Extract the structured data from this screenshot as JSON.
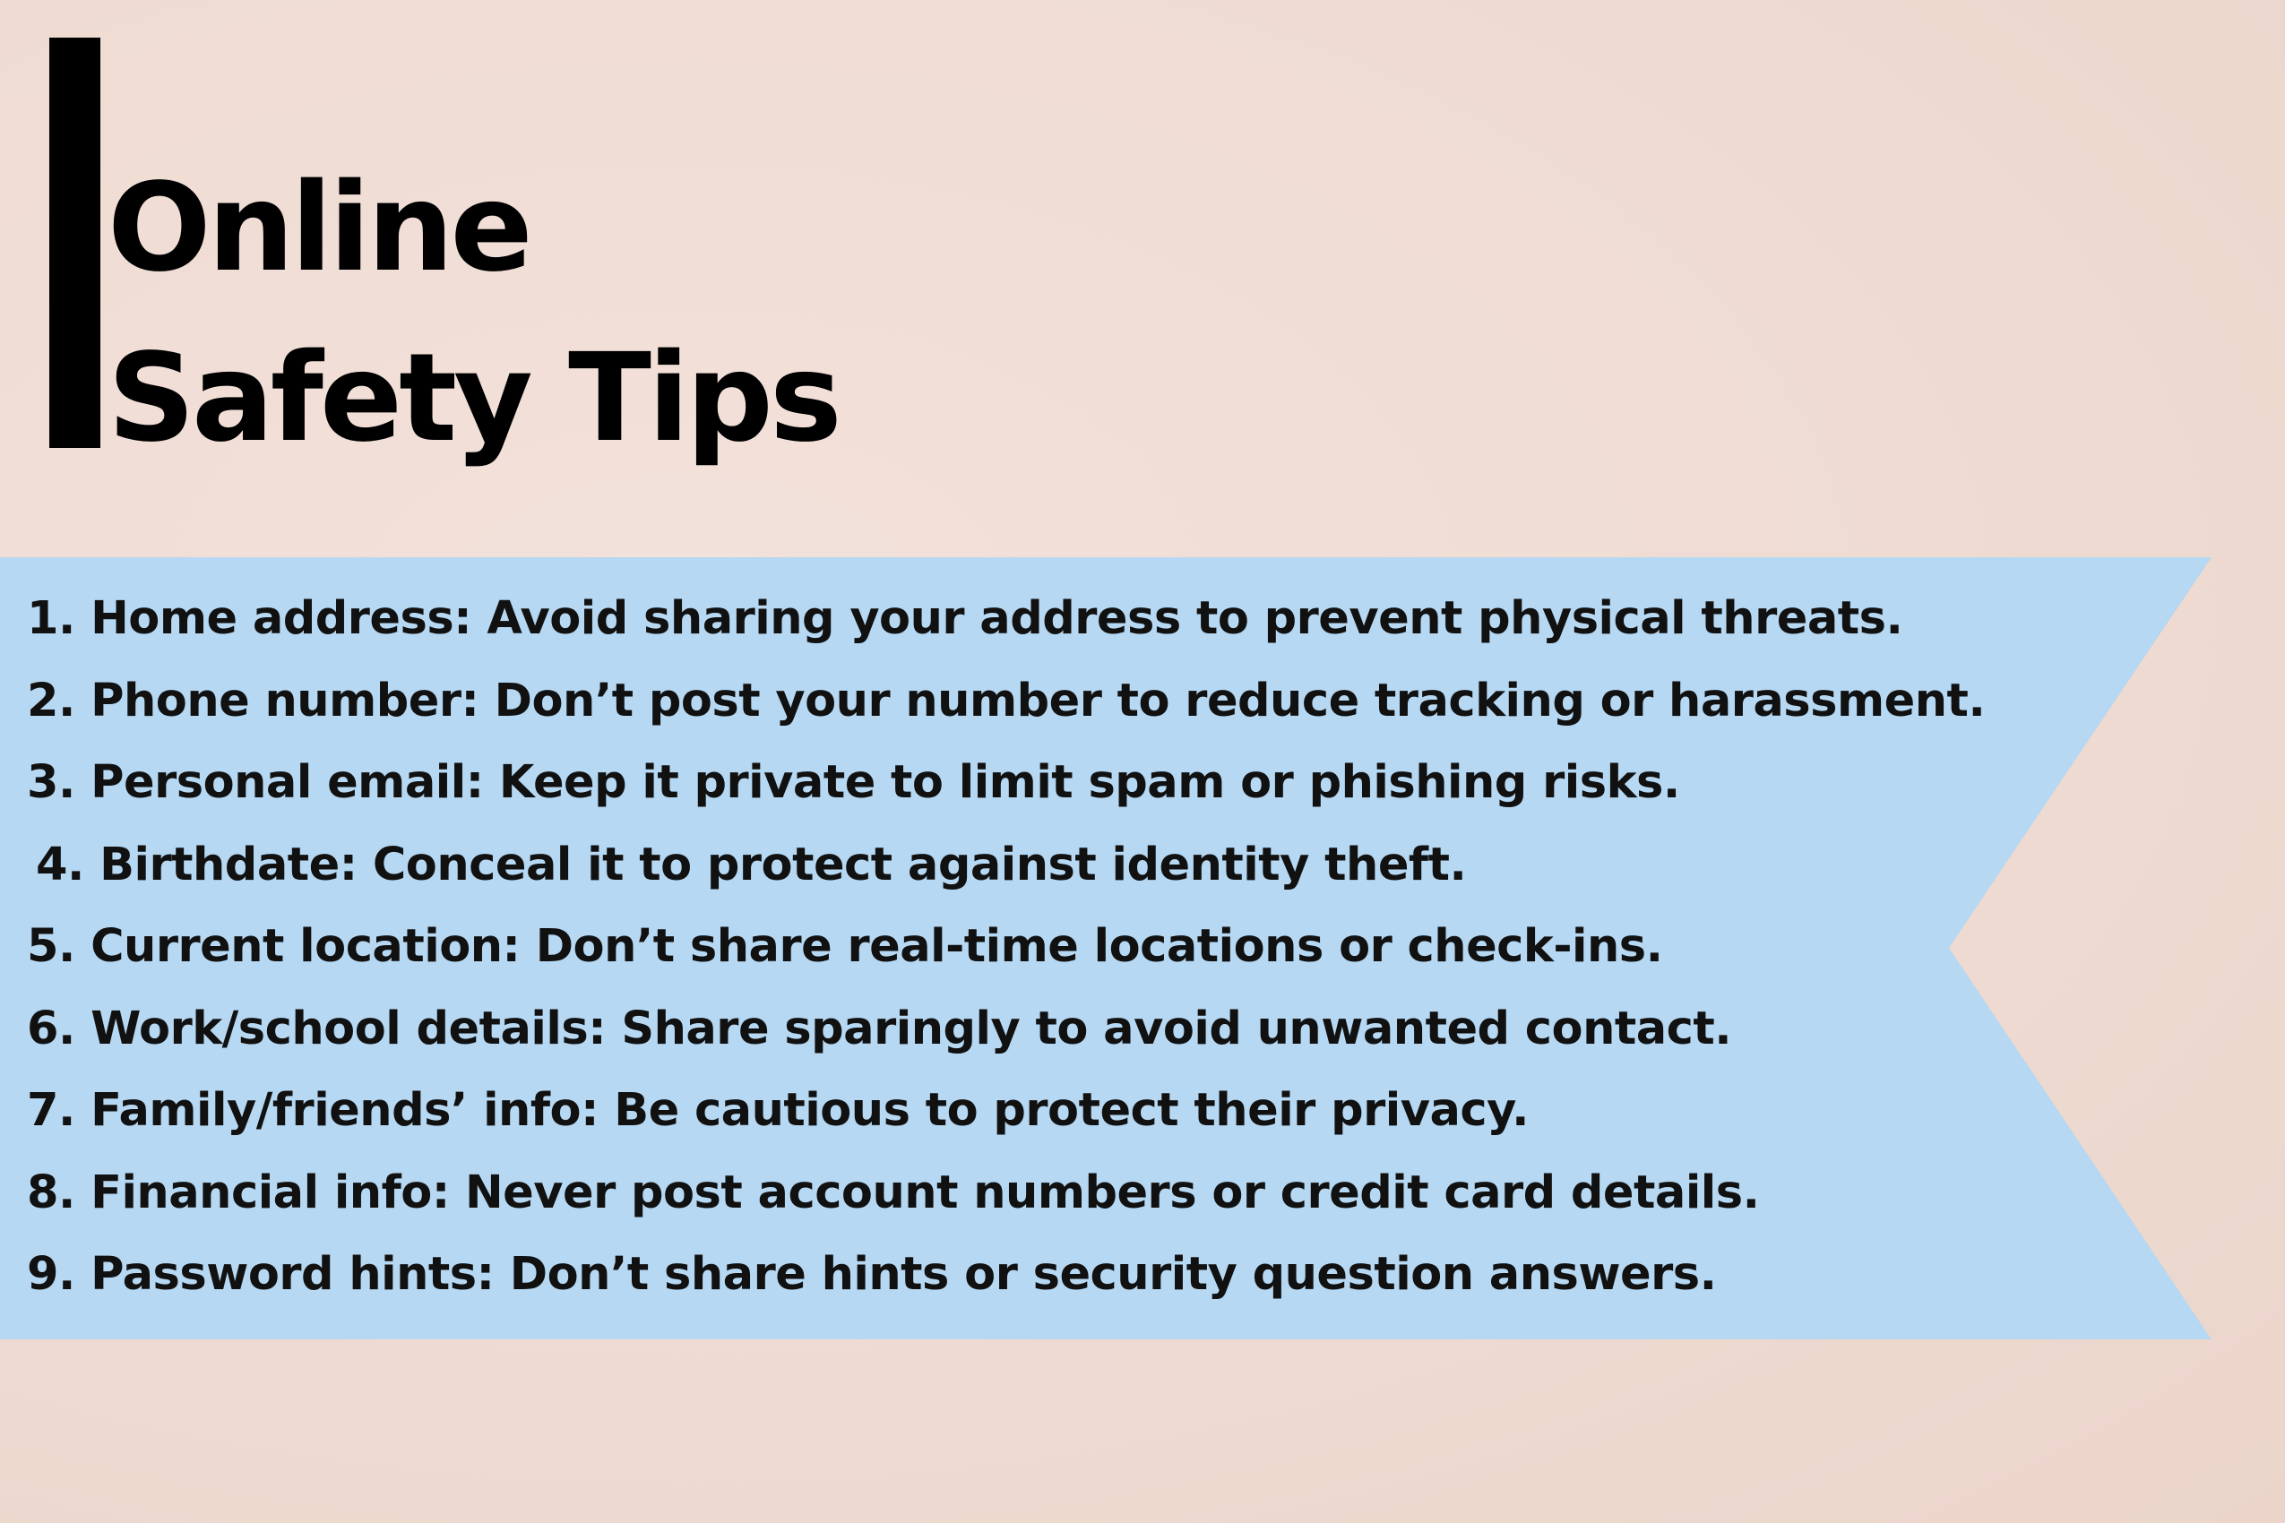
{
  "title": {
    "line1": "Online",
    "line2": "Safety Tips"
  },
  "colors": {
    "background": "#f0ddd5",
    "banner": "#b6d8f2",
    "text": "#111111",
    "accent_bar": "#000000"
  },
  "tips": [
    "1. Home address: Avoid sharing your address to prevent physical threats.",
    "2. Phone number: Don’t post your number to reduce tracking or harassment.",
    "3. Personal email: Keep it private to limit spam or phishing risks.",
    "4. Birthdate: Conceal it to protect against identity theft.",
    "5. Current location: Don’t share real-time locations or check-ins.",
    "6. Work/school details: Share sparingly to avoid unwanted contact.",
    "7. Family/friends’ info: Be cautious to protect their privacy.",
    "8. Financial info: Never post account numbers or credit card details.",
    "9. Password hints: Don’t share hints or security question answers."
  ]
}
